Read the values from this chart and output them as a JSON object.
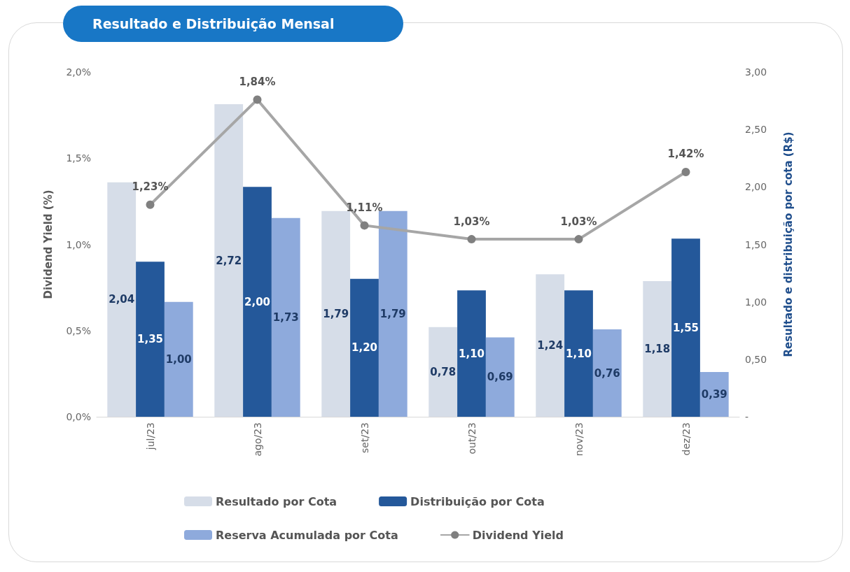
{
  "chart_data": {
    "type": "bar",
    "title": "Resultado e Distribuição Mensal",
    "ylabel": "Dividend Yield (%)",
    "y2label": "Resultado e distribuição por cota (R$)",
    "categories": [
      "jul/23",
      "ago/23",
      "set/23",
      "out/23",
      "nov/23",
      "dez/23"
    ],
    "series": [
      {
        "name": "Resultado por Cota",
        "axis": "y2",
        "color": "#d6dde8",
        "values": [
          2.04,
          2.72,
          1.79,
          0.78,
          1.24,
          1.18
        ],
        "value_labels": [
          "2,04",
          "2,72",
          "1,79",
          "0,78",
          "1,24",
          "1,18"
        ]
      },
      {
        "name": "Distribuição por Cota",
        "axis": "y2",
        "color": "#24589a",
        "values": [
          1.35,
          2.0,
          1.2,
          1.1,
          1.1,
          1.55
        ],
        "value_labels": [
          "1,35",
          "2,00",
          "1,20",
          "1,10",
          "1,10",
          "1,55"
        ]
      },
      {
        "name": "Reserva Acumulada por Cota",
        "axis": "y2",
        "color": "#8eaadc",
        "values": [
          1.0,
          1.73,
          1.79,
          0.69,
          0.76,
          0.39
        ],
        "value_labels": [
          "1,00",
          "1,73",
          "1,79",
          "0,69",
          "0,76",
          "0,39"
        ]
      },
      {
        "name": "Dividend Yield",
        "type": "line",
        "axis": "y",
        "color": "#a6a6a6",
        "values": [
          1.23,
          1.84,
          1.11,
          1.03,
          1.03,
          1.42
        ],
        "value_labels": [
          "1,23%",
          "1,84%",
          "1,11%",
          "1,03%",
          "1,03%",
          "1,42%"
        ]
      }
    ],
    "ylim": [
      0,
      2
    ],
    "yticks": [
      {
        "value": 0,
        "label": "0,0%"
      },
      {
        "value": 0.5,
        "label": "0,5%"
      },
      {
        "value": 1,
        "label": "1,0%"
      },
      {
        "value": 1.5,
        "label": "1,5%"
      },
      {
        "value": 2,
        "label": "2,0%"
      }
    ],
    "y2lim": [
      0,
      3
    ],
    "y2ticks": [
      {
        "value": 0,
        "label": "-"
      },
      {
        "value": 0.5,
        "label": "0,50"
      },
      {
        "value": 1,
        "label": "1,00"
      },
      {
        "value": 1.5,
        "label": "1,50"
      },
      {
        "value": 2,
        "label": "2,00"
      },
      {
        "value": 2.5,
        "label": "2,50"
      },
      {
        "value": 3,
        "label": "3,00"
      }
    ],
    "grid": false,
    "legend": "bottom",
    "marker": "circle",
    "line_style": "solid"
  }
}
